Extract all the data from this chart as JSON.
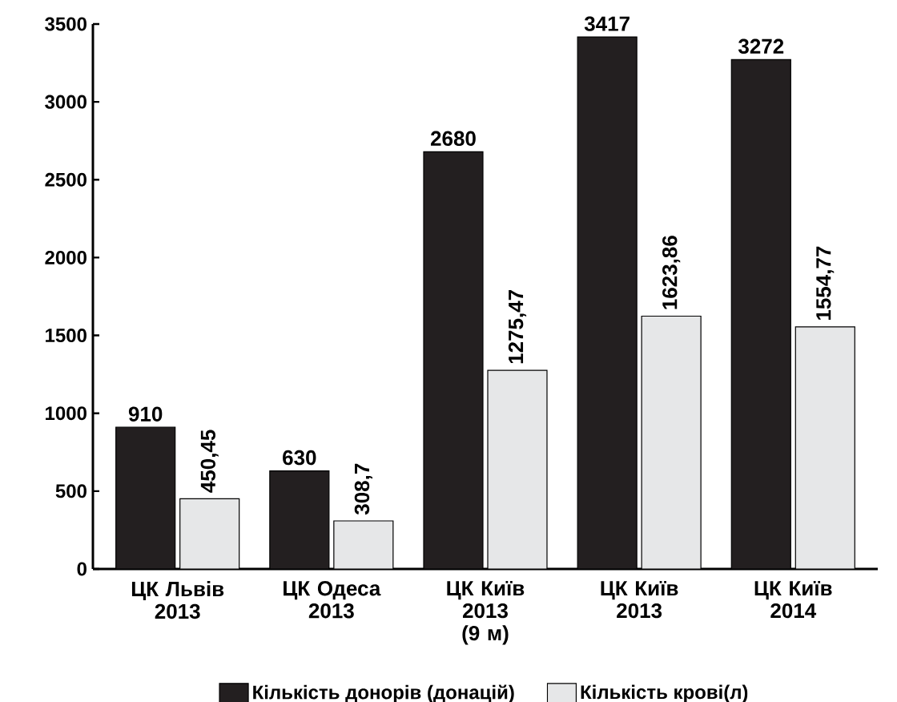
{
  "chart_data": {
    "type": "bar",
    "categories": [
      "ЦК Львів 2013",
      "ЦК Одеса 2013",
      "ЦК Київ 2013 (9 м)",
      "ЦК Київ 2013",
      "ЦК Київ 2014"
    ],
    "series": [
      {
        "name": "Кількість донорів (донацій)",
        "color": "#231f20",
        "values": [
          910,
          630,
          2680,
          3417,
          3272
        ],
        "value_labels": [
          "910",
          "630",
          "2680",
          "3417",
          "3272"
        ]
      },
      {
        "name": "Кількість крові(л)",
        "color": "#e6e7e8",
        "values": [
          450.45,
          308.7,
          1275.47,
          1623.86,
          1554.77
        ],
        "value_labels": [
          "450,45",
          "308,7",
          "1275,47",
          "1623,86",
          "1554,77"
        ]
      }
    ],
    "ylim": [
      0,
      3500
    ],
    "yticks": [
      0,
      500,
      1000,
      1500,
      2000,
      2500,
      3000,
      3500
    ],
    "legend": "bottom"
  }
}
